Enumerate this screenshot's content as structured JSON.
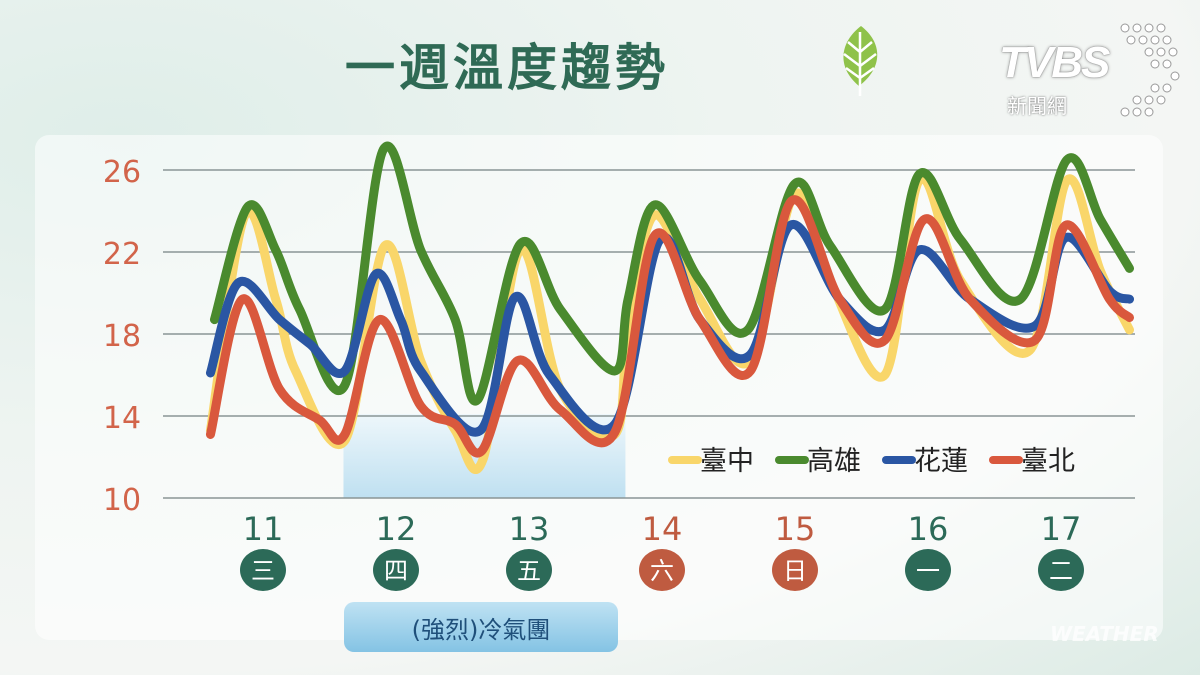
{
  "header": {
    "title": "一週溫度趨勢",
    "leaf_icon": "leaf-icon"
  },
  "logo": {
    "brand": "TVBS",
    "sub": "新聞網"
  },
  "watermark": "WEATHER",
  "cold_air_label": "(強烈)冷氣團",
  "colors": {
    "臺中": "#f9d66a",
    "高雄": "#4a8a2e",
    "花蓮": "#2a56a3",
    "臺北": "#d9583d",
    "axis_text": "#d2644a",
    "weekday_green": "#2c6a58",
    "weekend_red": "#bf5b40",
    "shade": "#bfe0f1"
  },
  "chart_data": {
    "type": "line",
    "title": "一週溫度趨勢",
    "xlabel": "",
    "ylabel": "",
    "ylim": [
      10,
      26
    ],
    "yticks": [
      "10",
      "14",
      "18",
      "22",
      "26"
    ],
    "xlim": [
      10.5,
      17.6
    ],
    "grid": true,
    "legend_position": "bottom-right",
    "days": [
      {
        "date": "11",
        "weekday": "三",
        "weekend": false
      },
      {
        "date": "12",
        "weekday": "四",
        "weekend": false
      },
      {
        "date": "13",
        "weekday": "五",
        "weekend": false
      },
      {
        "date": "14",
        "weekday": "六",
        "weekend": true
      },
      {
        "date": "15",
        "weekday": "日",
        "weekend": true
      },
      {
        "date": "16",
        "weekday": "一",
        "weekend": false
      },
      {
        "date": "17",
        "weekday": "二",
        "weekend": false
      }
    ],
    "shaded_range": {
      "x": [
        11.59,
        13.71
      ],
      "label": "(強烈)冷氣團"
    },
    "series": [
      {
        "name": "臺中",
        "color": "#f9d66a",
        "x": [
          10.59,
          10.85,
          11.08,
          11.23,
          11.6,
          11.9,
          12.17,
          12.43,
          12.64,
          12.92,
          13.22,
          13.63,
          13.73,
          13.93,
          14.27,
          14.65,
          14.98,
          15.25,
          15.66,
          15.92,
          16.23,
          16.75,
          17.03,
          17.28,
          17.5
        ],
        "y": [
          13.3,
          23.8,
          19.7,
          16.2,
          12.8,
          22.3,
          16.7,
          13.3,
          11.9,
          22.1,
          15.3,
          13.1,
          18.2,
          23.8,
          19.7,
          16.7,
          24.8,
          20.6,
          16.0,
          25.5,
          20.6,
          17.2,
          25.5,
          21.1,
          18.2
        ]
      },
      {
        "name": "高雄",
        "color": "#4a8a2e",
        "x": [
          10.62,
          10.87,
          11.08,
          11.26,
          11.6,
          11.89,
          12.17,
          12.43,
          12.6,
          12.92,
          13.22,
          13.63,
          13.73,
          13.93,
          14.27,
          14.63,
          14.98,
          15.25,
          15.66,
          15.92,
          16.23,
          16.68,
          17.03,
          17.28,
          17.5
        ],
        "y": [
          18.7,
          24.2,
          22.1,
          19.2,
          15.5,
          27.0,
          22.1,
          18.7,
          14.8,
          22.4,
          19.2,
          16.2,
          19.7,
          24.3,
          20.6,
          18.2,
          25.3,
          22.3,
          19.2,
          25.8,
          22.6,
          19.7,
          26.5,
          23.6,
          21.2
        ]
      },
      {
        "name": "花蓮",
        "color": "#2a56a3",
        "x": [
          10.59,
          10.8,
          11.11,
          11.34,
          11.6,
          11.83,
          12.02,
          12.17,
          12.62,
          12.88,
          13.14,
          13.63,
          13.97,
          14.27,
          14.65,
          14.95,
          15.32,
          15.66,
          15.92,
          16.3,
          16.79,
          17.02,
          17.35,
          17.5
        ],
        "y": [
          16.1,
          20.5,
          18.7,
          17.5,
          16.2,
          20.9,
          18.7,
          16.2,
          13.3,
          19.8,
          16.0,
          13.6,
          22.6,
          18.7,
          17.0,
          23.3,
          19.7,
          18.2,
          22.1,
          19.7,
          18.4,
          22.7,
          20.1,
          19.7
        ]
      },
      {
        "name": "臺北",
        "color": "#d9583d",
        "x": [
          10.59,
          10.83,
          11.11,
          11.41,
          11.6,
          11.86,
          12.17,
          12.43,
          12.63,
          12.9,
          13.22,
          13.63,
          13.93,
          14.27,
          14.65,
          14.96,
          15.32,
          15.66,
          15.96,
          16.3,
          16.79,
          17.02,
          17.35,
          17.5
        ],
        "y": [
          13.1,
          19.7,
          15.3,
          13.8,
          13.1,
          18.7,
          14.5,
          13.6,
          12.3,
          16.7,
          14.3,
          13.2,
          22.8,
          18.7,
          16.2,
          24.5,
          19.7,
          17.7,
          23.6,
          19.7,
          17.7,
          23.3,
          19.7,
          18.8
        ]
      }
    ]
  }
}
